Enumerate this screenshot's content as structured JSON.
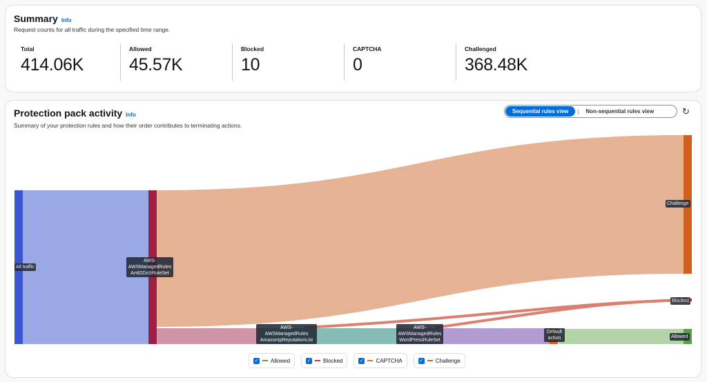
{
  "summary": {
    "title": "Summary",
    "info": "Info",
    "description": "Request counts for all traffic during the specified time range.",
    "stats": [
      {
        "label": "Total",
        "value": "414.06K"
      },
      {
        "label": "Allowed",
        "value": "45.57K"
      },
      {
        "label": "Blocked",
        "value": "10"
      },
      {
        "label": "CAPTCHA",
        "value": "0"
      },
      {
        "label": "Challenged",
        "value": "368.48K"
      }
    ]
  },
  "activity": {
    "title": "Protection pack activity",
    "info": "Info",
    "description": "Summary of your protection rules and how their order contributes to terminating actions.",
    "views": {
      "sequential": "Sequential rules view",
      "non_sequential": "Non-sequential rules view"
    },
    "refresh_icon": "refresh-icon",
    "nodes": {
      "all": "All traffic",
      "ddos": "AWS-\nAWSManagedRules\nAntiDDoSRuleSet",
      "iprep": "AWS-\nAWSManagedRules\nAmazonIpReputationList",
      "wp": "AWS-\nAWSManagedRules\nWordPressRuleSet",
      "default": "Default\naction",
      "challenge": "Challenge",
      "blocked": "Blocked",
      "allowed": "Allowed"
    },
    "legend": [
      {
        "label": "Allowed",
        "color": "#5aa24a"
      },
      {
        "label": "Blocked",
        "color": "#c0392b"
      },
      {
        "label": "CAPTCHA",
        "color": "#e07020"
      },
      {
        "label": "Challenge",
        "color": "#d0601e"
      }
    ]
  }
}
